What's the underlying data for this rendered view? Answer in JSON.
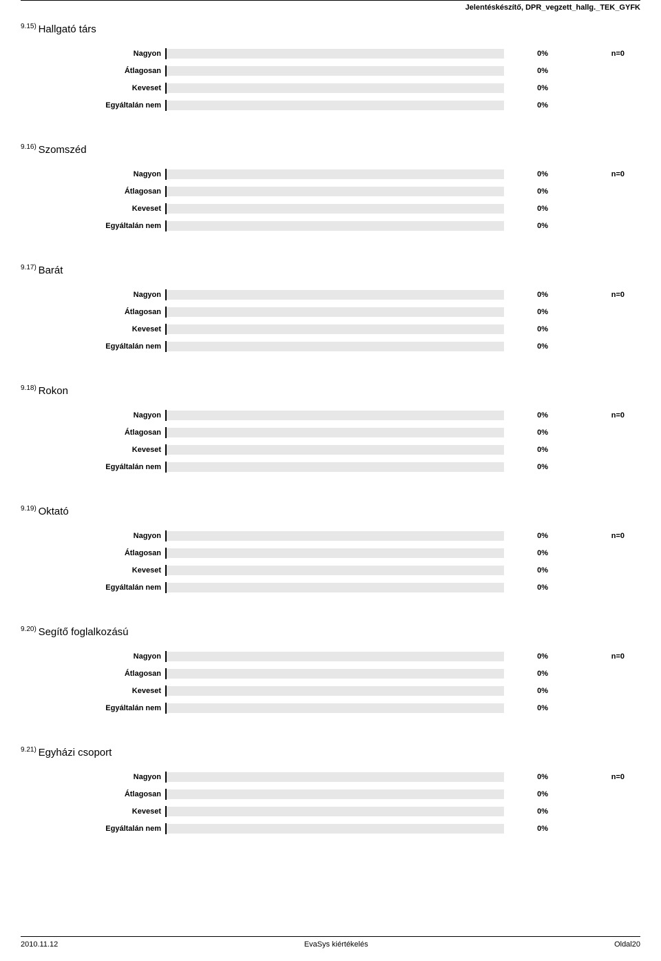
{
  "header": "Jelentéskészítő, DPR_vegzett_hallg._TEK_GYFK",
  "colors": {
    "bar_track": "#e7e7e7",
    "bar_fill": "#808080",
    "tick": "#000000",
    "text": "#000000",
    "background": "#ffffff",
    "rule": "#000000"
  },
  "typography": {
    "header_fontsize": 11,
    "question_label_fontsize": 15,
    "question_number_fontsize": 10,
    "row_label_fontsize": 11,
    "value_fontsize": 11,
    "footer_fontsize": 11
  },
  "chart_layout": {
    "label_width": 210,
    "bar_track_width": 490,
    "bar_track_height": 14,
    "tick_width": 2,
    "tick_height": 16,
    "value_col_width": 70,
    "n_col_width": 105,
    "row_gap": 7
  },
  "questions": [
    {
      "number": "9.15)",
      "label": "Hallgató társ",
      "n": "n=0",
      "rows": [
        {
          "label": "Nagyon",
          "value_pct": 0,
          "value_text": "0%"
        },
        {
          "label": "Átlagosan",
          "value_pct": 0,
          "value_text": "0%"
        },
        {
          "label": "Keveset",
          "value_pct": 0,
          "value_text": "0%"
        },
        {
          "label": "Egyáltalán nem",
          "value_pct": 0,
          "value_text": "0%"
        }
      ]
    },
    {
      "number": "9.16)",
      "label": "Szomszéd",
      "n": "n=0",
      "rows": [
        {
          "label": "Nagyon",
          "value_pct": 0,
          "value_text": "0%"
        },
        {
          "label": "Átlagosan",
          "value_pct": 0,
          "value_text": "0%"
        },
        {
          "label": "Keveset",
          "value_pct": 0,
          "value_text": "0%"
        },
        {
          "label": "Egyáltalán nem",
          "value_pct": 0,
          "value_text": "0%"
        }
      ]
    },
    {
      "number": "9.17)",
      "label": "Barát",
      "n": "n=0",
      "rows": [
        {
          "label": "Nagyon",
          "value_pct": 0,
          "value_text": "0%"
        },
        {
          "label": "Átlagosan",
          "value_pct": 0,
          "value_text": "0%"
        },
        {
          "label": "Keveset",
          "value_pct": 0,
          "value_text": "0%"
        },
        {
          "label": "Egyáltalán nem",
          "value_pct": 0,
          "value_text": "0%"
        }
      ]
    },
    {
      "number": "9.18)",
      "label": "Rokon",
      "n": "n=0",
      "rows": [
        {
          "label": "Nagyon",
          "value_pct": 0,
          "value_text": "0%"
        },
        {
          "label": "Átlagosan",
          "value_pct": 0,
          "value_text": "0%"
        },
        {
          "label": "Keveset",
          "value_pct": 0,
          "value_text": "0%"
        },
        {
          "label": "Egyáltalán nem",
          "value_pct": 0,
          "value_text": "0%"
        }
      ]
    },
    {
      "number": "9.19)",
      "label": "Oktató",
      "n": "n=0",
      "rows": [
        {
          "label": "Nagyon",
          "value_pct": 0,
          "value_text": "0%"
        },
        {
          "label": "Átlagosan",
          "value_pct": 0,
          "value_text": "0%"
        },
        {
          "label": "Keveset",
          "value_pct": 0,
          "value_text": "0%"
        },
        {
          "label": "Egyáltalán nem",
          "value_pct": 0,
          "value_text": "0%"
        }
      ]
    },
    {
      "number": "9.20)",
      "label": "Segítő foglalkozású",
      "n": "n=0",
      "rows": [
        {
          "label": "Nagyon",
          "value_pct": 0,
          "value_text": "0%"
        },
        {
          "label": "Átlagosan",
          "value_pct": 0,
          "value_text": "0%"
        },
        {
          "label": "Keveset",
          "value_pct": 0,
          "value_text": "0%"
        },
        {
          "label": "Egyáltalán nem",
          "value_pct": 0,
          "value_text": "0%"
        }
      ]
    },
    {
      "number": "9.21)",
      "label": "Egyházi csoport",
      "n": "n=0",
      "rows": [
        {
          "label": "Nagyon",
          "value_pct": 0,
          "value_text": "0%"
        },
        {
          "label": "Átlagosan",
          "value_pct": 0,
          "value_text": "0%"
        },
        {
          "label": "Keveset",
          "value_pct": 0,
          "value_text": "0%"
        },
        {
          "label": "Egyáltalán nem",
          "value_pct": 0,
          "value_text": "0%"
        }
      ]
    }
  ],
  "footer": {
    "left": "2010.11.12",
    "center": "EvaSys kiértékelés",
    "right": "Oldal20"
  }
}
